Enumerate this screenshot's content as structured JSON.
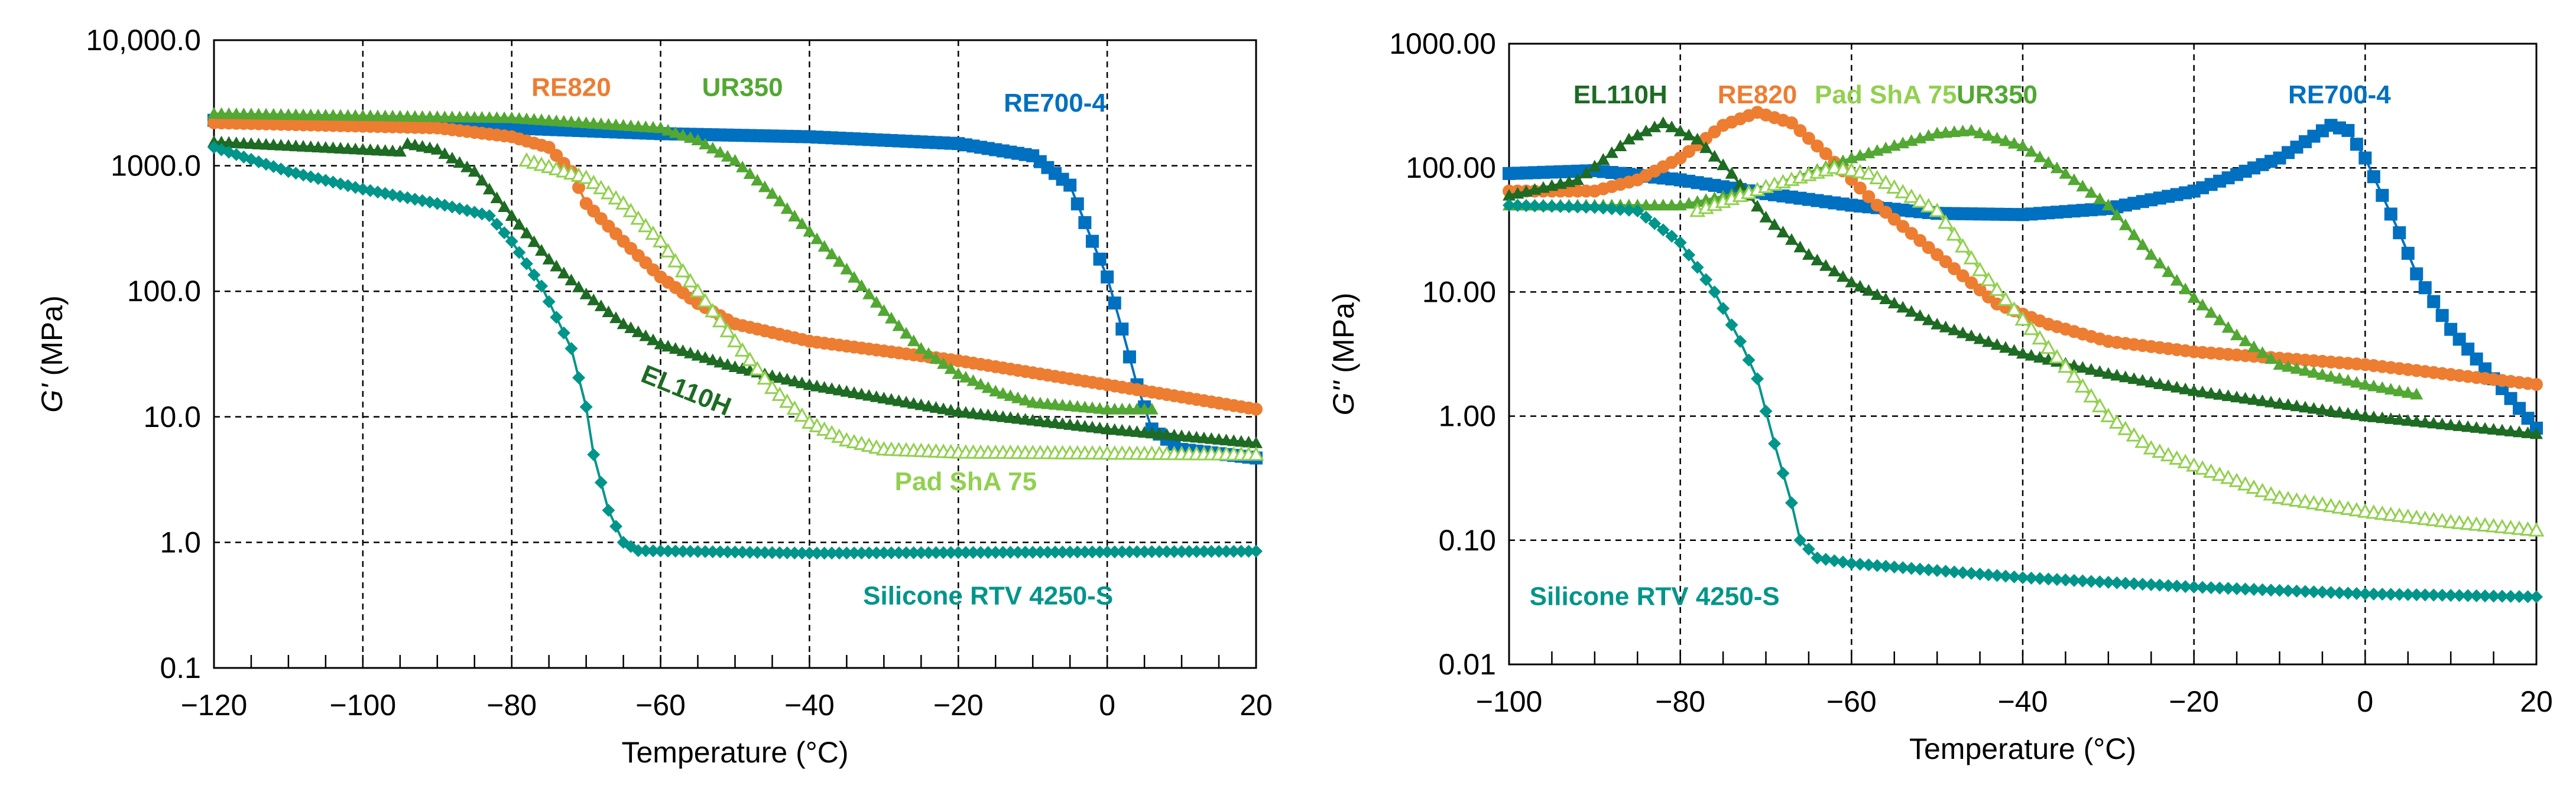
{
  "chart_data": [
    {
      "type": "scatter",
      "id": "gprime",
      "xlabel": "Temperature (°C)",
      "ylabel_symbol": "G'",
      "ylabel_unit": " (MPa)",
      "xlim": [
        -120,
        20
      ],
      "ylim": [
        0.1,
        10000
      ],
      "yscale": "log",
      "xticks": [
        -120,
        -100,
        -80,
        -60,
        -40,
        -20,
        0,
        20
      ],
      "xtick_labels": [
        "−120",
        "−100",
        "−80",
        "−60",
        "−40",
        "−20",
        "0",
        "20"
      ],
      "yticks": [
        10000,
        1000,
        100,
        10,
        1,
        0.1
      ],
      "ytick_labels": [
        "10,000.0",
        "1000.0",
        "100.0",
        "10.0",
        "1.0",
        "0.1"
      ],
      "grid": true,
      "series": [
        {
          "name": "RE700-4",
          "color": "#0070C0",
          "marker": "square",
          "points": [
            [
              -120,
              2300
            ],
            [
              -80,
              2000
            ],
            [
              -60,
              1800
            ],
            [
              -40,
              1700
            ],
            [
              -20,
              1500
            ],
            [
              -10,
              1200
            ],
            [
              -5,
              700
            ],
            [
              -2,
              250
            ],
            [
              0,
              130
            ],
            [
              2,
              50
            ],
            [
              4,
              18
            ],
            [
              6,
              8
            ],
            [
              10,
              5.5
            ],
            [
              20,
              4.7
            ]
          ]
        },
        {
          "name": "RE820",
          "color": "#ED7D31",
          "marker": "circle",
          "points": [
            [
              -120,
              2200
            ],
            [
              -90,
              2000
            ],
            [
              -80,
              1700
            ],
            [
              -75,
              1400
            ],
            [
              -72,
              900
            ],
            [
              -70,
              500
            ],
            [
              -65,
              250
            ],
            [
              -60,
              130
            ],
            [
              -55,
              80
            ],
            [
              -50,
              55
            ],
            [
              -40,
              40
            ],
            [
              -20,
              28
            ],
            [
              0,
              18
            ],
            [
              20,
              11.5
            ]
          ]
        },
        {
          "name": "UR350",
          "color": "#52A832",
          "marker": "triangle",
          "points": [
            [
              -120,
              2600
            ],
            [
              -80,
              2400
            ],
            [
              -60,
              2000
            ],
            [
              -55,
              1600
            ],
            [
              -50,
              1100
            ],
            [
              -45,
              600
            ],
            [
              -40,
              300
            ],
            [
              -35,
              150
            ],
            [
              -30,
              70
            ],
            [
              -25,
              35
            ],
            [
              -20,
              22
            ],
            [
              -15,
              16
            ],
            [
              -10,
              13
            ],
            [
              0,
              11.5
            ],
            [
              6,
              11.5
            ]
          ]
        },
        {
          "name": "EL110H",
          "color": "#1E6B24",
          "marker": "triangle",
          "points": [
            [
              -120,
              1550
            ],
            [
              -95,
              1300
            ],
            [
              -94,
              1500
            ],
            [
              -90,
              1350
            ],
            [
              -85,
              900
            ],
            [
              -80,
              400
            ],
            [
              -75,
              180
            ],
            [
              -70,
              95
            ],
            [
              -65,
              55
            ],
            [
              -60,
              38
            ],
            [
              -50,
              25
            ],
            [
              -40,
              18
            ],
            [
              -20,
              11
            ],
            [
              0,
              8
            ],
            [
              20,
              6.2
            ]
          ]
        },
        {
          "name": "Pad ShA 75",
          "color": "#92D050",
          "marker": "open-triangle",
          "points": [
            [
              -78,
              1100
            ],
            [
              -70,
              800
            ],
            [
              -65,
              500
            ],
            [
              -60,
              250
            ],
            [
              -55,
              100
            ],
            [
              -50,
              40
            ],
            [
              -45,
              17
            ],
            [
              -40,
              9
            ],
            [
              -35,
              6.5
            ],
            [
              -30,
              5.5
            ],
            [
              -20,
              5.2
            ],
            [
              0,
              5.1
            ],
            [
              20,
              5
            ]
          ]
        },
        {
          "name": "Silicone RTV 4250-S",
          "color": "#00958A",
          "marker": "diamond",
          "points": [
            [
              -120,
              1400
            ],
            [
              -110,
              900
            ],
            [
              -100,
              650
            ],
            [
              -90,
              500
            ],
            [
              -83,
              400
            ],
            [
              -80,
              250
            ],
            [
              -76,
              110
            ],
            [
              -72,
              35
            ],
            [
              -70,
              12
            ],
            [
              -69,
              5
            ],
            [
              -67,
              1.8
            ],
            [
              -65,
              1.0
            ],
            [
              -63,
              0.86
            ],
            [
              -40,
              0.82
            ],
            [
              20,
              0.85
            ]
          ]
        }
      ],
      "annotations": [
        {
          "text": "RE820",
          "series": "RE820",
          "at": [
            -72,
            3600
          ]
        },
        {
          "text": "UR350",
          "series": "UR350",
          "at": [
            -49,
            3600
          ]
        },
        {
          "text": "RE700-4",
          "series": "RE700-4",
          "at": [
            -7,
            2700
          ]
        },
        {
          "text": "EL110H",
          "series": "EL110H",
          "at": [
            -57,
            14
          ],
          "rotate": 22
        },
        {
          "text": "Pad ShA 75",
          "series": "Pad ShA 75",
          "at": [
            -19,
            2.6
          ]
        },
        {
          "text": "Silicone RTV 4250-S",
          "series": "Silicone RTV 4250-S",
          "at": [
            -16,
            0.32
          ]
        }
      ]
    },
    {
      "type": "scatter",
      "id": "gdoubleprime",
      "xlabel": "Temperature (°C)",
      "ylabel_symbol": "G''",
      "ylabel_unit": " (MPa)",
      "xlim": [
        -100,
        20
      ],
      "ylim": [
        0.01,
        1000
      ],
      "yscale": "log",
      "xticks": [
        -100,
        -80,
        -60,
        -40,
        -20,
        0,
        20
      ],
      "xtick_labels": [
        "−100",
        "−80",
        "−60",
        "−40",
        "−20",
        "0",
        "20"
      ],
      "yticks": [
        1000,
        100,
        10,
        1,
        0.1,
        0.01
      ],
      "ytick_labels": [
        "1000.00",
        "100.00",
        "10.00",
        "1.00",
        "0.10",
        "0.01"
      ],
      "grid": true,
      "series": [
        {
          "name": "RE700-4",
          "color": "#0070C0",
          "marker": "square",
          "points": [
            [
              -100,
              90
            ],
            [
              -90,
              95
            ],
            [
              -80,
              80
            ],
            [
              -70,
              62
            ],
            [
              -60,
              50
            ],
            [
              -50,
              43
            ],
            [
              -40,
              42
            ],
            [
              -30,
              47
            ],
            [
              -20,
              65
            ],
            [
              -10,
              120
            ],
            [
              -4,
              220
            ],
            [
              -2,
              200
            ],
            [
              0,
              120
            ],
            [
              2,
              60
            ],
            [
              4,
              30
            ],
            [
              6,
              14
            ],
            [
              10,
              5
            ],
            [
              15,
              2
            ],
            [
              20,
              0.8
            ]
          ]
        },
        {
          "name": "RE820",
          "color": "#ED7D31",
          "marker": "circle",
          "points": [
            [
              -100,
              65
            ],
            [
              -90,
              65
            ],
            [
              -85,
              80
            ],
            [
              -80,
              120
            ],
            [
              -75,
              220
            ],
            [
              -71,
              280
            ],
            [
              -67,
              230
            ],
            [
              -63,
              130
            ],
            [
              -57,
              50
            ],
            [
              -50,
              20
            ],
            [
              -43,
              8
            ],
            [
              -37,
              5.5
            ],
            [
              -30,
              4
            ],
            [
              -20,
              3.3
            ],
            [
              0,
              2.6
            ],
            [
              20,
              1.8
            ]
          ]
        },
        {
          "name": "EL110H",
          "color": "#1E6B24",
          "marker": "triangle",
          "points": [
            [
              -100,
              60
            ],
            [
              -92,
              80
            ],
            [
              -86,
              170
            ],
            [
              -82,
              230
            ],
            [
              -78,
              170
            ],
            [
              -74,
              90
            ],
            [
              -70,
              40
            ],
            [
              -65,
              20
            ],
            [
              -60,
              12
            ],
            [
              -50,
              5.5
            ],
            [
              -40,
              3.2
            ],
            [
              -30,
              2.2
            ],
            [
              -20,
              1.6
            ],
            [
              0,
              1.0
            ],
            [
              20,
              0.72
            ]
          ]
        },
        {
          "name": "UR350",
          "color": "#52A832",
          "marker": "triangle",
          "points": [
            [
              -100,
              50
            ],
            [
              -80,
              50
            ],
            [
              -70,
              70
            ],
            [
              -60,
              120
            ],
            [
              -50,
              190
            ],
            [
              -46,
              200
            ],
            [
              -40,
              150
            ],
            [
              -35,
              90
            ],
            [
              -30,
              50
            ],
            [
              -25,
              20
            ],
            [
              -20,
              9
            ],
            [
              -15,
              4.5
            ],
            [
              -10,
              2.6
            ],
            [
              0,
              1.8
            ],
            [
              6,
              1.5
            ]
          ]
        },
        {
          "name": "Pad ShA 75",
          "color": "#92D050",
          "marker": "open-triangle",
          "points": [
            [
              -78,
              45
            ],
            [
              -70,
              70
            ],
            [
              -62,
              100
            ],
            [
              -58,
              90
            ],
            [
              -50,
              45
            ],
            [
              -45,
              15
            ],
            [
              -40,
              6
            ],
            [
              -35,
              2.5
            ],
            [
              -30,
              1.0
            ],
            [
              -25,
              0.55
            ],
            [
              -20,
              0.4
            ],
            [
              -15,
              0.3
            ],
            [
              -10,
              0.22
            ],
            [
              0,
              0.17
            ],
            [
              10,
              0.14
            ],
            [
              20,
              0.12
            ]
          ]
        },
        {
          "name": "Silicone RTV 4250-S",
          "color": "#00958A",
          "marker": "diamond",
          "points": [
            [
              -100,
              50
            ],
            [
              -90,
              48
            ],
            [
              -85,
              45
            ],
            [
              -80,
              25
            ],
            [
              -76,
              10
            ],
            [
              -73,
              4
            ],
            [
              -71,
              2
            ],
            [
              -69,
              0.6
            ],
            [
              -67,
              0.2
            ],
            [
              -66,
              0.1
            ],
            [
              -64,
              0.072
            ],
            [
              -60,
              0.065
            ],
            [
              -40,
              0.05
            ],
            [
              -20,
              0.042
            ],
            [
              0,
              0.037
            ],
            [
              20,
              0.035
            ]
          ]
        }
      ],
      "annotations": [
        {
          "text": "EL110H",
          "series": "EL110H",
          "at": [
            -87,
            330
          ]
        },
        {
          "text": "RE820",
          "series": "RE820",
          "at": [
            -71,
            330
          ]
        },
        {
          "text": "Pad ShA 75",
          "series": "Pad ShA 75",
          "at": [
            -56,
            330
          ]
        },
        {
          "text": "UR350",
          "series": "UR350",
          "at": [
            -43,
            330
          ]
        },
        {
          "text": "RE700-4",
          "series": "RE700-4",
          "at": [
            -3,
            330
          ]
        },
        {
          "text": "Silicone RTV 4250-S",
          "series": "Silicone RTV 4250-S",
          "at": [
            -83,
            0.03
          ]
        }
      ]
    }
  ]
}
